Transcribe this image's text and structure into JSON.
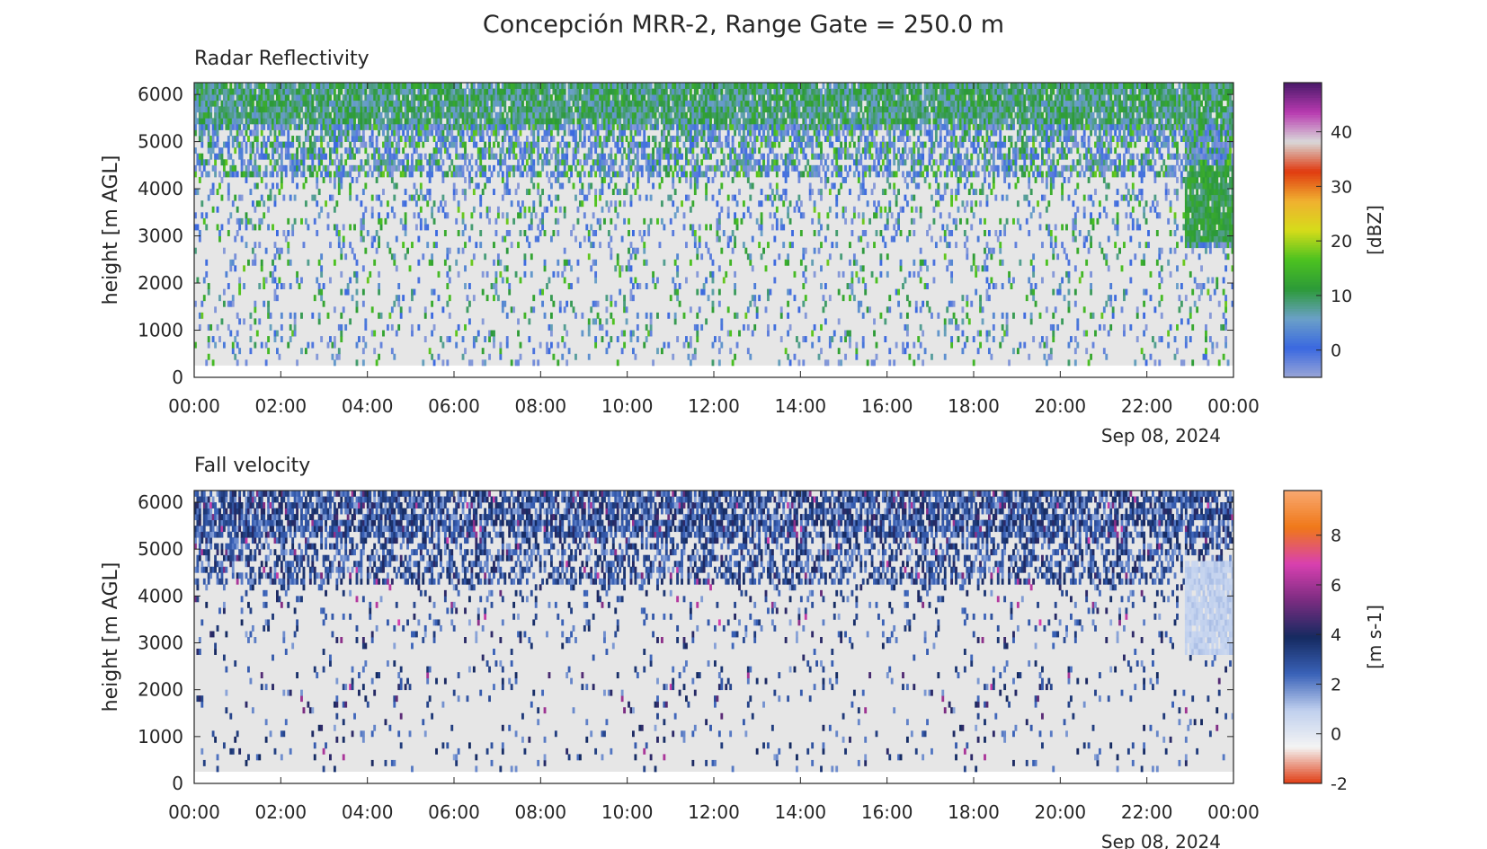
{
  "figure": {
    "title": "Concepción MRR-2, Range Gate = 250.0 m"
  },
  "colors": {
    "missing": "#e6e6e6",
    "reflectivity_scale": [
      "#9aa6d6",
      "#3a68e0",
      "#6ba0c8",
      "#2c9a38",
      "#4cc220",
      "#d6dc1a",
      "#f0b030",
      "#e03a10",
      "#d9d9d9",
      "#b83ab0",
      "#4a1a6a"
    ],
    "velocity_scale": [
      "#e03a10",
      "#f4f4f4",
      "#c0d0ee",
      "#3a62b8",
      "#152a60",
      "#7a2c80",
      "#d840b0",
      "#f07818",
      "#f8a870"
    ]
  },
  "chart_data": [
    {
      "type": "heatmap",
      "title": "Radar Reflectivity",
      "ylabel": "height [m AGL]",
      "ylim": [
        0,
        6250
      ],
      "yticks": [
        "0",
        "1000",
        "2000",
        "3000",
        "4000",
        "5000",
        "6000"
      ],
      "ytick_values": [
        0,
        1000,
        2000,
        3000,
        4000,
        5000,
        6000
      ],
      "xlim": [
        0,
        24
      ],
      "xticks": [
        "00:00",
        "02:00",
        "04:00",
        "06:00",
        "08:00",
        "10:00",
        "12:00",
        "14:00",
        "16:00",
        "18:00",
        "20:00",
        "22:00",
        "00:00"
      ],
      "xtick_values": [
        0,
        2,
        4,
        6,
        8,
        10,
        12,
        14,
        16,
        18,
        20,
        22,
        24
      ],
      "date_label": "Sep 08, 2024",
      "range_gate_m": 250.0,
      "data_height_range_m": [
        250,
        6250
      ],
      "colorbar": {
        "label": "[dBZ]",
        "range": [
          -5,
          49
        ],
        "ticks": [
          "0",
          "10",
          "20",
          "30",
          "40"
        ],
        "tick_values": [
          0,
          10,
          20,
          30,
          40
        ]
      }
    },
    {
      "type": "heatmap",
      "title": "Fall velocity",
      "ylabel": "height [m AGL]",
      "ylim": [
        0,
        6250
      ],
      "yticks": [
        "0",
        "1000",
        "2000",
        "3000",
        "4000",
        "5000",
        "6000"
      ],
      "ytick_values": [
        0,
        1000,
        2000,
        3000,
        4000,
        5000,
        6000
      ],
      "xlim": [
        0,
        24
      ],
      "xticks": [
        "00:00",
        "02:00",
        "04:00",
        "06:00",
        "08:00",
        "10:00",
        "12:00",
        "14:00",
        "16:00",
        "18:00",
        "20:00",
        "22:00",
        "00:00"
      ],
      "xtick_values": [
        0,
        2,
        4,
        6,
        8,
        10,
        12,
        14,
        16,
        18,
        20,
        22,
        24
      ],
      "date_label": "Sep 08, 2024",
      "range_gate_m": 250.0,
      "data_height_range_m": [
        250,
        6250
      ],
      "colorbar": {
        "label": "[m s-1]",
        "range": [
          -2,
          9.8
        ],
        "ticks": [
          "-2",
          "0",
          "2",
          "4",
          "6",
          "8"
        ],
        "tick_values": [
          -2,
          0,
          2,
          4,
          6,
          8
        ]
      }
    }
  ]
}
